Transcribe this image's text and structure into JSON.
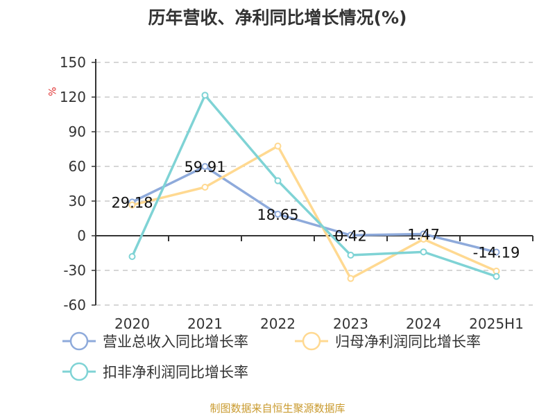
{
  "chart_data": {
    "type": "line",
    "title": "历年营收、净利同比增长情况(%)",
    "ylabel": "%",
    "categories": [
      "2020",
      "2021",
      "2022",
      "2023",
      "2024",
      "2025H1"
    ],
    "ylim": [
      -60,
      150
    ],
    "yticks": [
      -60,
      -30,
      0,
      30,
      60,
      90,
      120,
      150
    ],
    "grid": true,
    "legend_position": "bottom",
    "series": [
      {
        "name": "营业总收入同比增长率",
        "color": "#8eaadb",
        "values": [
          29.18,
          59.91,
          18.65,
          0.42,
          1.47,
          -14.19
        ],
        "labels": [
          "29.18",
          "59.91",
          "18.65",
          "0.42",
          "1.47",
          "-14.19"
        ]
      },
      {
        "name": "归母净利润同比增长率",
        "color": "#ffd991",
        "values": [
          26.6,
          42,
          77.6,
          -37,
          -3,
          -30.6
        ]
      },
      {
        "name": "扣非净利润同比增长率",
        "color": "#7fd3d5",
        "values": [
          -18,
          121.6,
          47.6,
          -16.8,
          -14,
          -35.2
        ]
      }
    ]
  },
  "footer": "制图数据来自恒生聚源数据库"
}
